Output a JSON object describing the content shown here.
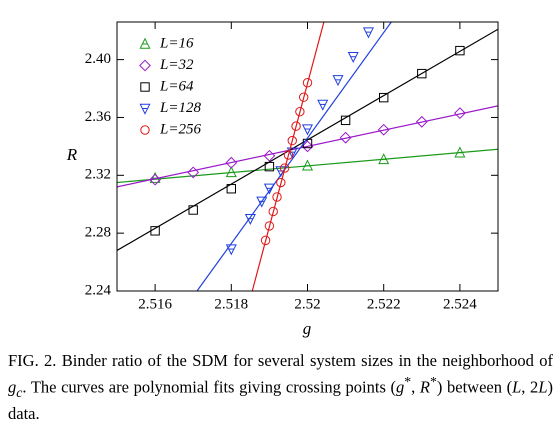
{
  "chart_data": {
    "type": "scatter",
    "x_label": "g",
    "y_label": "R",
    "xlim": [
      2.515,
      2.525
    ],
    "ylim": [
      2.24,
      2.426
    ],
    "xticks": [
      2.516,
      2.518,
      2.52,
      2.522,
      2.524
    ],
    "yticks": [
      {
        "value": 2.24,
        "label": "2.24"
      },
      {
        "value": 2.28,
        "label": "2.28"
      },
      {
        "value": 2.32,
        "label": "2.32"
      },
      {
        "value": 2.36,
        "label": "2.36"
      },
      {
        "value": 2.4,
        "label": "2.40"
      }
    ],
    "legend": "upper-left",
    "series": [
      {
        "name": "L=16",
        "color": "#1a9a1a",
        "marker": "triangle",
        "x": [
          2.516,
          2.518,
          2.52,
          2.522,
          2.524
        ],
        "values": [
          2.318,
          2.322,
          2.3266,
          2.331,
          2.3356
        ],
        "fit_x": [
          2.515,
          2.525
        ],
        "fit_y": [
          2.315,
          2.338
        ]
      },
      {
        "name": "L=32",
        "color": "#9b19c9",
        "marker": "diamond",
        "x": [
          2.516,
          2.517,
          2.518,
          2.519,
          2.52,
          2.521,
          2.522,
          2.523,
          2.524
        ],
        "values": [
          2.317,
          2.322,
          2.3287,
          2.3335,
          2.34,
          2.346,
          2.3515,
          2.357,
          2.363
        ],
        "fit_x": [
          2.515,
          2.525
        ],
        "fit_y": [
          2.312,
          2.368
        ]
      },
      {
        "name": "L=64",
        "color": "#000000",
        "marker": "square",
        "x": [
          2.516,
          2.517,
          2.518,
          2.519,
          2.52,
          2.521,
          2.522,
          2.523,
          2.524
        ],
        "values": [
          2.2816,
          2.296,
          2.3107,
          2.326,
          2.342,
          2.358,
          2.3737,
          2.3903,
          2.4062
        ],
        "fit_x": [
          2.515,
          2.525
        ],
        "fit_y": [
          2.268,
          2.421
        ]
      },
      {
        "name": "L=128",
        "color": "#1f3fe0",
        "marker": "triangle-down",
        "x": [
          2.518,
          2.5185,
          2.5188,
          2.519,
          2.5193,
          2.5196,
          2.52,
          2.5204,
          2.5208,
          2.5212,
          2.5216
        ],
        "values": [
          2.269,
          2.29,
          2.302,
          2.311,
          2.323,
          2.336,
          2.352,
          2.369,
          2.386,
          2.402,
          2.419
        ],
        "fit_x": [
          2.5171,
          2.5222
        ],
        "fit_y": [
          2.24,
          2.426
        ]
      },
      {
        "name": "L=256",
        "color": "#e01818",
        "marker": "circle",
        "x": [
          2.5189,
          2.519,
          2.5191,
          2.5192,
          2.5193,
          2.5194,
          2.5195,
          2.5196,
          2.5197,
          2.5198,
          2.5199,
          2.52
        ],
        "values": [
          2.275,
          2.285,
          2.295,
          2.305,
          2.315,
          2.325,
          2.334,
          2.344,
          2.354,
          2.364,
          2.374,
          2.384
        ],
        "fit_x": [
          2.51855,
          2.52043
        ],
        "fit_y": [
          2.24,
          2.426
        ]
      }
    ]
  },
  "caption": {
    "parts": [
      "FIG. 2.  Binder ratio of the SDM for several system sizes in the neighborhood of ",
      "g",
      "c",
      ". The curves are polynomial fits giving crossing points (",
      "g",
      "*",
      ", ",
      "R",
      "*",
      ") between (",
      "L",
      ", 2",
      "L",
      ") data."
    ]
  }
}
